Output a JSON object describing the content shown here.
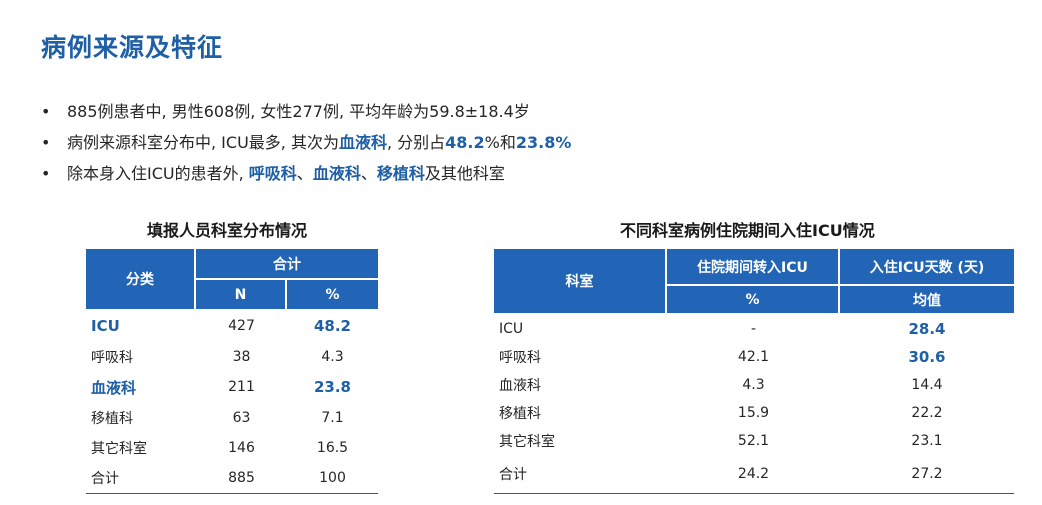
{
  "title": "病例来源及特征",
  "bullets": [
    {
      "dot": "•",
      "parts": [
        {
          "text": "885例患者中, 男性608例, 女性277例, 平均年龄为59.8±18.4岁",
          "hl": false
        }
      ]
    },
    {
      "dot": "•",
      "parts": [
        {
          "text": "病例来源科室分布中, ICU最多, 其次为",
          "hl": false
        },
        {
          "text": "血液科",
          "hl": true
        },
        {
          "text": ", 分别占",
          "hl": false
        },
        {
          "text": "48.2",
          "hl": true
        },
        {
          "text": "%和",
          "hl": false
        },
        {
          "text": "23.8%",
          "hl": true
        }
      ]
    },
    {
      "dot": "•",
      "parts": [
        {
          "text": "除本身入住ICU的患者外, ",
          "hl": false
        },
        {
          "text": "呼吸科",
          "hl": true
        },
        {
          "text": "、",
          "hl": false
        },
        {
          "text": "血液科",
          "hl": true
        },
        {
          "text": "、",
          "hl": false
        },
        {
          "text": "移植科",
          "hl": true
        },
        {
          "text": "及其他科室",
          "hl": false
        }
      ]
    }
  ],
  "table1": {
    "caption": "填报人员科室分布情况",
    "header_category": "分类",
    "header_group": "合计",
    "header_n": "N",
    "header_pct": "%",
    "rows": [
      {
        "name": "ICU",
        "n": "427",
        "pct": "48.2",
        "highlight": true
      },
      {
        "name": "呼吸科",
        "n": "38",
        "pct": "4.3",
        "highlight": false
      },
      {
        "name": "血液科",
        "n": "211",
        "pct": "23.8",
        "highlight": true
      },
      {
        "name": "移植科",
        "n": "63",
        "pct": "7.1",
        "highlight": false
      },
      {
        "name": "其它科室",
        "n": "146",
        "pct": "16.5",
        "highlight": false
      },
      {
        "name": "合计",
        "n": "885",
        "pct": "100",
        "highlight": false
      }
    ]
  },
  "table2": {
    "caption": "不同科室病例住院期间入住ICU情况",
    "header_dept": "科室",
    "header_transfer": "住院期间转入ICU",
    "header_days": "入住ICU天数 (天)",
    "header_pct": "%",
    "header_mean": "均值",
    "rows": [
      {
        "dept": "ICU",
        "pct": "-",
        "mean": "28.4",
        "mean_highlight": true
      },
      {
        "dept": "呼吸科",
        "pct": "42.1",
        "mean": "30.6",
        "mean_highlight": true
      },
      {
        "dept": "血液科",
        "pct": "4.3",
        "mean": "14.4",
        "mean_highlight": false
      },
      {
        "dept": "移植科",
        "pct": "15.9",
        "mean": "22.2",
        "mean_highlight": false
      },
      {
        "dept": "其它科室",
        "pct": "52.1",
        "mean": "23.1",
        "mean_highlight": false
      },
      {
        "dept": "合计",
        "pct": "24.2",
        "mean": "27.2",
        "mean_highlight": false
      }
    ]
  },
  "colors": {
    "accent": "#1f5fa6",
    "header_bg": "#2264b5"
  }
}
